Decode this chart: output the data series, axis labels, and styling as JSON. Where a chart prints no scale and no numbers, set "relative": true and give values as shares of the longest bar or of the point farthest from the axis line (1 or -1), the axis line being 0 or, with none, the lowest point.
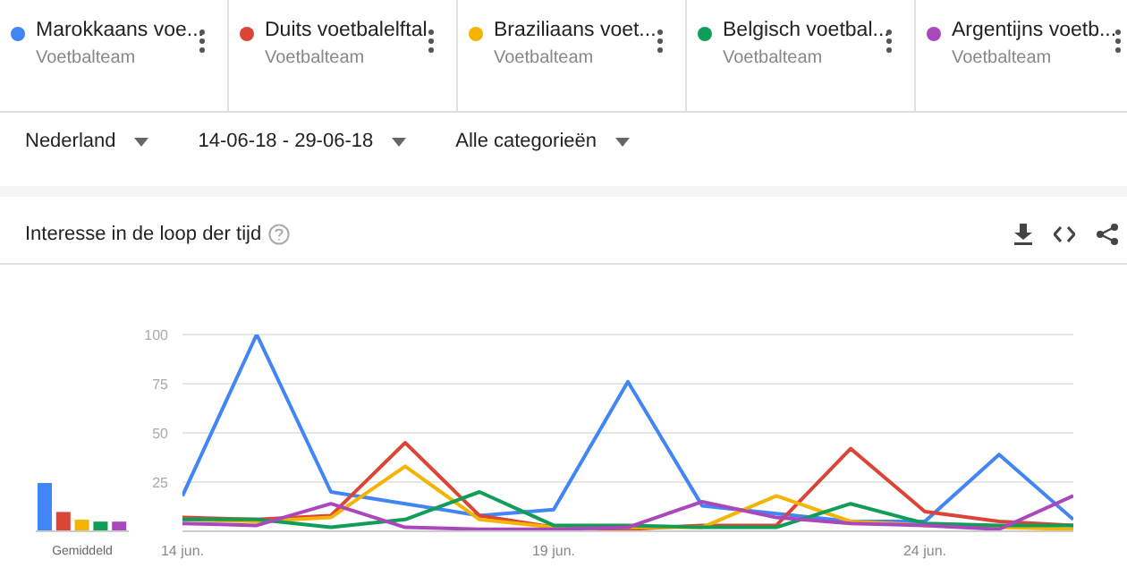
{
  "chart_data": [
    {
      "type": "line",
      "title": "Interesse in de loop der tijd",
      "annotations": [
        "Voetbalteam",
        "Voetbalteam",
        "Voetbalteam",
        "Voetbalteam",
        "Voetbalteam",
        "Nederland",
        "14-06-18 - 29-06-18",
        "Alle categorieën"
      ],
      "x": [
        "--06-14",
        "--06-15",
        "--06-16",
        "--06-17",
        "--06-18",
        "--06-19",
        "--06-20",
        "--06-21",
        "--06-22",
        "--06-23",
        "--06-24",
        "--06-25",
        "--06-26"
      ],
      "series": [
        {
          "name": "Marokkaans voe...",
          "color": "#4285f4",
          "values": [
            18,
            100,
            20,
            14,
            8,
            11,
            76,
            13,
            9,
            5,
            5,
            39,
            6
          ]
        },
        {
          "name": "Duits voetbalelftal",
          "color": "#db4437",
          "values": [
            7,
            6,
            8,
            45,
            8,
            2,
            1,
            3,
            3,
            42,
            10,
            5,
            3
          ]
        },
        {
          "name": "Braziliaans voet...",
          "color": "#f4b400",
          "values": [
            6,
            5,
            7,
            33,
            6,
            2,
            2,
            2,
            18,
            5,
            3,
            2,
            1
          ]
        },
        {
          "name": "Belgisch voetbal...",
          "color": "#0f9d58",
          "values": [
            6,
            6,
            2,
            6,
            20,
            3,
            3,
            2,
            2,
            14,
            4,
            3,
            3
          ]
        },
        {
          "name": "Argentijns voetb...",
          "color": "#ab47bc",
          "values": [
            4,
            3,
            14,
            2,
            1,
            1,
            2,
            15,
            7,
            4,
            3,
            1,
            18
          ]
        }
      ],
      "xlim": [
        "--06-14",
        "--06-26"
      ],
      "xticks": [
        {
          "value": "--06-14",
          "label": "14 jun."
        },
        {
          "value": "--06-19",
          "label": "19 jun."
        },
        {
          "value": "--06-24",
          "label": "24 jun."
        }
      ],
      "ylim": [
        0,
        100
      ],
      "yticks": [
        25,
        50,
        75,
        100
      ],
      "grid": "y",
      "legend": "top"
    },
    {
      "type": "bar",
      "relative": true,
      "xlabel": "Gemiddeld",
      "categories": [
        null,
        null,
        null,
        null,
        null
      ],
      "values": [
        1,
        0.4,
        0.24,
        0.2,
        0.2
      ],
      "colors": [
        "#4285f4",
        "#db4437",
        "#f4b400",
        "#0f9d58",
        "#ab47bc"
      ]
    }
  ]
}
